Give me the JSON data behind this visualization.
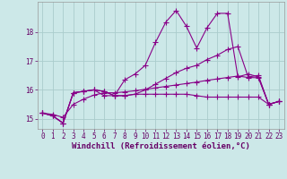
{
  "bg_color": "#cce8e8",
  "grid_color": "#aacccc",
  "line_color": "#880088",
  "linewidth": 0.8,
  "marker": "+",
  "markersize": 4,
  "markeredgewidth": 0.8,
  "xlabel": "Windchill (Refroidissement éolien,°C)",
  "xlabel_fontsize": 6.5,
  "tick_fontsize": 5.5,
  "xlim": [
    -0.5,
    23.5
  ],
  "ylim": [
    14.65,
    19.05
  ],
  "yticks": [
    15,
    16,
    17,
    18
  ],
  "xticks": [
    0,
    1,
    2,
    3,
    4,
    5,
    6,
    7,
    8,
    9,
    10,
    11,
    12,
    13,
    14,
    15,
    16,
    17,
    18,
    19,
    20,
    21,
    22,
    23
  ],
  "series": [
    {
      "x": [
        0,
        1,
        2,
        3,
        4,
        5,
        6,
        7,
        8,
        9,
        10,
        11,
        12,
        13,
        14,
        15,
        16,
        17,
        18,
        19,
        20,
        21,
        22,
        23
      ],
      "y": [
        15.2,
        15.1,
        14.85,
        15.9,
        15.95,
        16.0,
        15.95,
        15.8,
        15.8,
        15.85,
        15.85,
        15.85,
        15.85,
        15.85,
        15.85,
        15.8,
        15.75,
        15.75,
        15.75,
        15.75,
        15.75,
        15.75,
        15.5,
        15.6
      ]
    },
    {
      "x": [
        0,
        1,
        2,
        3,
        4,
        5,
        6,
        7,
        8,
        9,
        10,
        11,
        12,
        13,
        14,
        15,
        16,
        17,
        18,
        19,
        20,
        21,
        22,
        23
      ],
      "y": [
        15.2,
        15.1,
        14.85,
        15.9,
        15.95,
        16.0,
        15.95,
        15.8,
        16.35,
        16.55,
        16.85,
        17.65,
        18.35,
        18.75,
        18.2,
        17.45,
        18.15,
        18.65,
        18.65,
        16.45,
        16.55,
        16.45,
        15.5,
        15.6
      ]
    },
    {
      "x": [
        0,
        1,
        2,
        3,
        4,
        5,
        6,
        7,
        8,
        9,
        10,
        11,
        12,
        13,
        14,
        15,
        16,
        17,
        18,
        19,
        20,
        21,
        22,
        23
      ],
      "y": [
        15.2,
        15.1,
        14.85,
        15.9,
        15.95,
        16.0,
        15.8,
        15.8,
        15.8,
        15.85,
        16.0,
        16.2,
        16.4,
        16.6,
        16.75,
        16.85,
        17.05,
        17.2,
        17.4,
        17.5,
        16.45,
        16.5,
        15.5,
        15.6
      ]
    },
    {
      "x": [
        0,
        1,
        2,
        3,
        4,
        5,
        6,
        7,
        8,
        9,
        10,
        11,
        12,
        13,
        14,
        15,
        16,
        17,
        18,
        19,
        20,
        21,
        22,
        23
      ],
      "y": [
        15.2,
        15.15,
        15.05,
        15.5,
        15.68,
        15.82,
        15.9,
        15.9,
        15.93,
        15.97,
        16.02,
        16.07,
        16.12,
        16.17,
        16.22,
        16.27,
        16.33,
        16.38,
        16.43,
        16.48,
        16.43,
        16.42,
        15.5,
        15.6
      ]
    }
  ]
}
